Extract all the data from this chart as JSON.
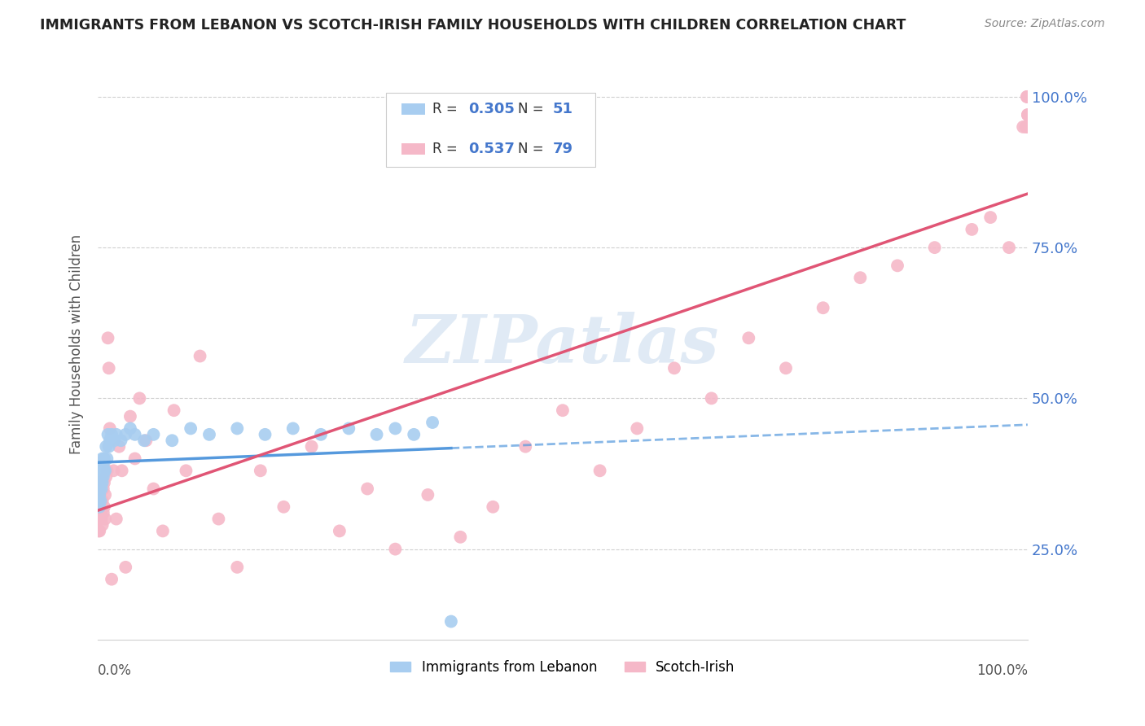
{
  "title": "IMMIGRANTS FROM LEBANON VS SCOTCH-IRISH FAMILY HOUSEHOLDS WITH CHILDREN CORRELATION CHART",
  "source": "Source: ZipAtlas.com",
  "ylabel": "Family Households with Children",
  "legend_blue_label": "Immigrants from Lebanon",
  "legend_pink_label": "Scotch-Irish",
  "watermark_text": "ZIPatlas",
  "blue_r": "0.305",
  "blue_n": "51",
  "pink_r": "0.537",
  "pink_n": "79",
  "y_tick_positions": [
    0.25,
    0.5,
    0.75,
    1.0
  ],
  "y_tick_labels": [
    "25.0%",
    "50.0%",
    "75.0%",
    "100.0%"
  ],
  "blue_scatter_x": [
    0.001,
    0.001,
    0.001,
    0.001,
    0.002,
    0.002,
    0.002,
    0.002,
    0.002,
    0.003,
    0.003,
    0.003,
    0.003,
    0.004,
    0.004,
    0.004,
    0.005,
    0.005,
    0.005,
    0.006,
    0.006,
    0.007,
    0.007,
    0.008,
    0.009,
    0.01,
    0.011,
    0.012,
    0.013,
    0.015,
    0.018,
    0.02,
    0.025,
    0.03,
    0.035,
    0.04,
    0.05,
    0.06,
    0.08,
    0.1,
    0.12,
    0.15,
    0.18,
    0.21,
    0.24,
    0.27,
    0.3,
    0.32,
    0.34,
    0.36,
    0.38
  ],
  "blue_scatter_y": [
    0.33,
    0.35,
    0.36,
    0.37,
    0.32,
    0.34,
    0.35,
    0.36,
    0.38,
    0.33,
    0.36,
    0.37,
    0.38,
    0.35,
    0.37,
    0.39,
    0.36,
    0.38,
    0.4,
    0.37,
    0.39,
    0.38,
    0.4,
    0.38,
    0.42,
    0.4,
    0.44,
    0.42,
    0.43,
    0.44,
    0.43,
    0.44,
    0.43,
    0.44,
    0.45,
    0.44,
    0.43,
    0.44,
    0.43,
    0.45,
    0.44,
    0.45,
    0.44,
    0.45,
    0.44,
    0.45,
    0.44,
    0.45,
    0.44,
    0.46,
    0.13
  ],
  "pink_scatter_x": [
    0.001,
    0.001,
    0.001,
    0.001,
    0.001,
    0.002,
    0.002,
    0.002,
    0.002,
    0.003,
    0.003,
    0.003,
    0.004,
    0.004,
    0.004,
    0.005,
    0.005,
    0.006,
    0.006,
    0.007,
    0.007,
    0.008,
    0.008,
    0.009,
    0.01,
    0.011,
    0.012,
    0.013,
    0.015,
    0.017,
    0.02,
    0.023,
    0.026,
    0.03,
    0.035,
    0.04,
    0.045,
    0.052,
    0.06,
    0.07,
    0.082,
    0.095,
    0.11,
    0.13,
    0.15,
    0.175,
    0.2,
    0.23,
    0.26,
    0.29,
    0.32,
    0.355,
    0.39,
    0.425,
    0.46,
    0.5,
    0.54,
    0.58,
    0.62,
    0.66,
    0.7,
    0.74,
    0.78,
    0.82,
    0.86,
    0.9,
    0.94,
    0.96,
    0.98,
    0.995,
    0.998,
    0.999,
    1.0,
    1.0,
    1.0,
    1.0,
    1.0,
    1.0,
    1.0
  ],
  "pink_scatter_y": [
    0.28,
    0.3,
    0.32,
    0.34,
    0.36,
    0.28,
    0.32,
    0.34,
    0.36,
    0.3,
    0.33,
    0.35,
    0.3,
    0.32,
    0.36,
    0.29,
    0.33,
    0.31,
    0.35,
    0.32,
    0.36,
    0.3,
    0.34,
    0.37,
    0.38,
    0.6,
    0.55,
    0.45,
    0.2,
    0.38,
    0.3,
    0.42,
    0.38,
    0.22,
    0.47,
    0.4,
    0.5,
    0.43,
    0.35,
    0.28,
    0.48,
    0.38,
    0.57,
    0.3,
    0.22,
    0.38,
    0.32,
    0.42,
    0.28,
    0.35,
    0.25,
    0.34,
    0.27,
    0.32,
    0.42,
    0.48,
    0.38,
    0.45,
    0.55,
    0.5,
    0.6,
    0.55,
    0.65,
    0.7,
    0.72,
    0.75,
    0.78,
    0.8,
    0.75,
    0.95,
    0.95,
    1.0,
    1.0,
    0.95,
    0.97,
    1.0,
    1.0,
    0.97,
    0.95
  ],
  "blue_color": "#a8cdf0",
  "pink_color": "#f5b8c8",
  "blue_line_color": "#5599dd",
  "pink_line_color": "#e05575",
  "background_color": "#ffffff",
  "grid_color": "#d0d0d0",
  "title_color": "#222222",
  "axis_label_color": "#555555",
  "right_tick_color": "#4477cc",
  "watermark_color": "#ccddef",
  "source_color": "#888888"
}
